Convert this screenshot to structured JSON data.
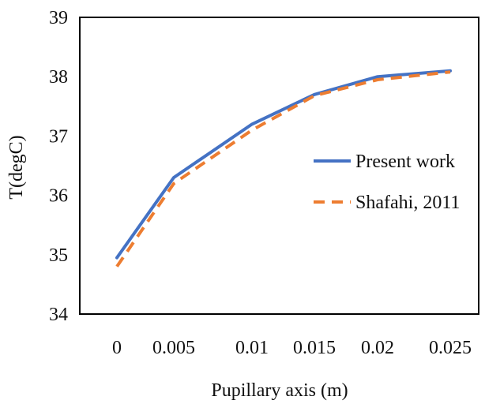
{
  "chart_data": {
    "type": "line",
    "xlabel": "Pupillary axis (m)",
    "ylabel": "T(degC)",
    "x_categories": [
      "0",
      "0.005",
      "0.01",
      "0.015",
      "0.02",
      "0.025"
    ],
    "ylim": [
      34,
      39
    ],
    "yticks": [
      "34",
      "35",
      "36",
      "37",
      "38",
      "39"
    ],
    "grid": false,
    "legend_position": "right",
    "series": [
      {
        "name": "Present work",
        "color": "#4472C4",
        "style": "solid",
        "values": [
          34.95,
          36.3,
          37.2,
          37.7,
          38.0,
          38.1
        ]
      },
      {
        "name": "Shafahi, 2011",
        "color": "#ED7D31",
        "style": "dashed",
        "values": [
          34.8,
          36.2,
          37.1,
          37.68,
          37.95,
          38.08
        ]
      }
    ]
  }
}
